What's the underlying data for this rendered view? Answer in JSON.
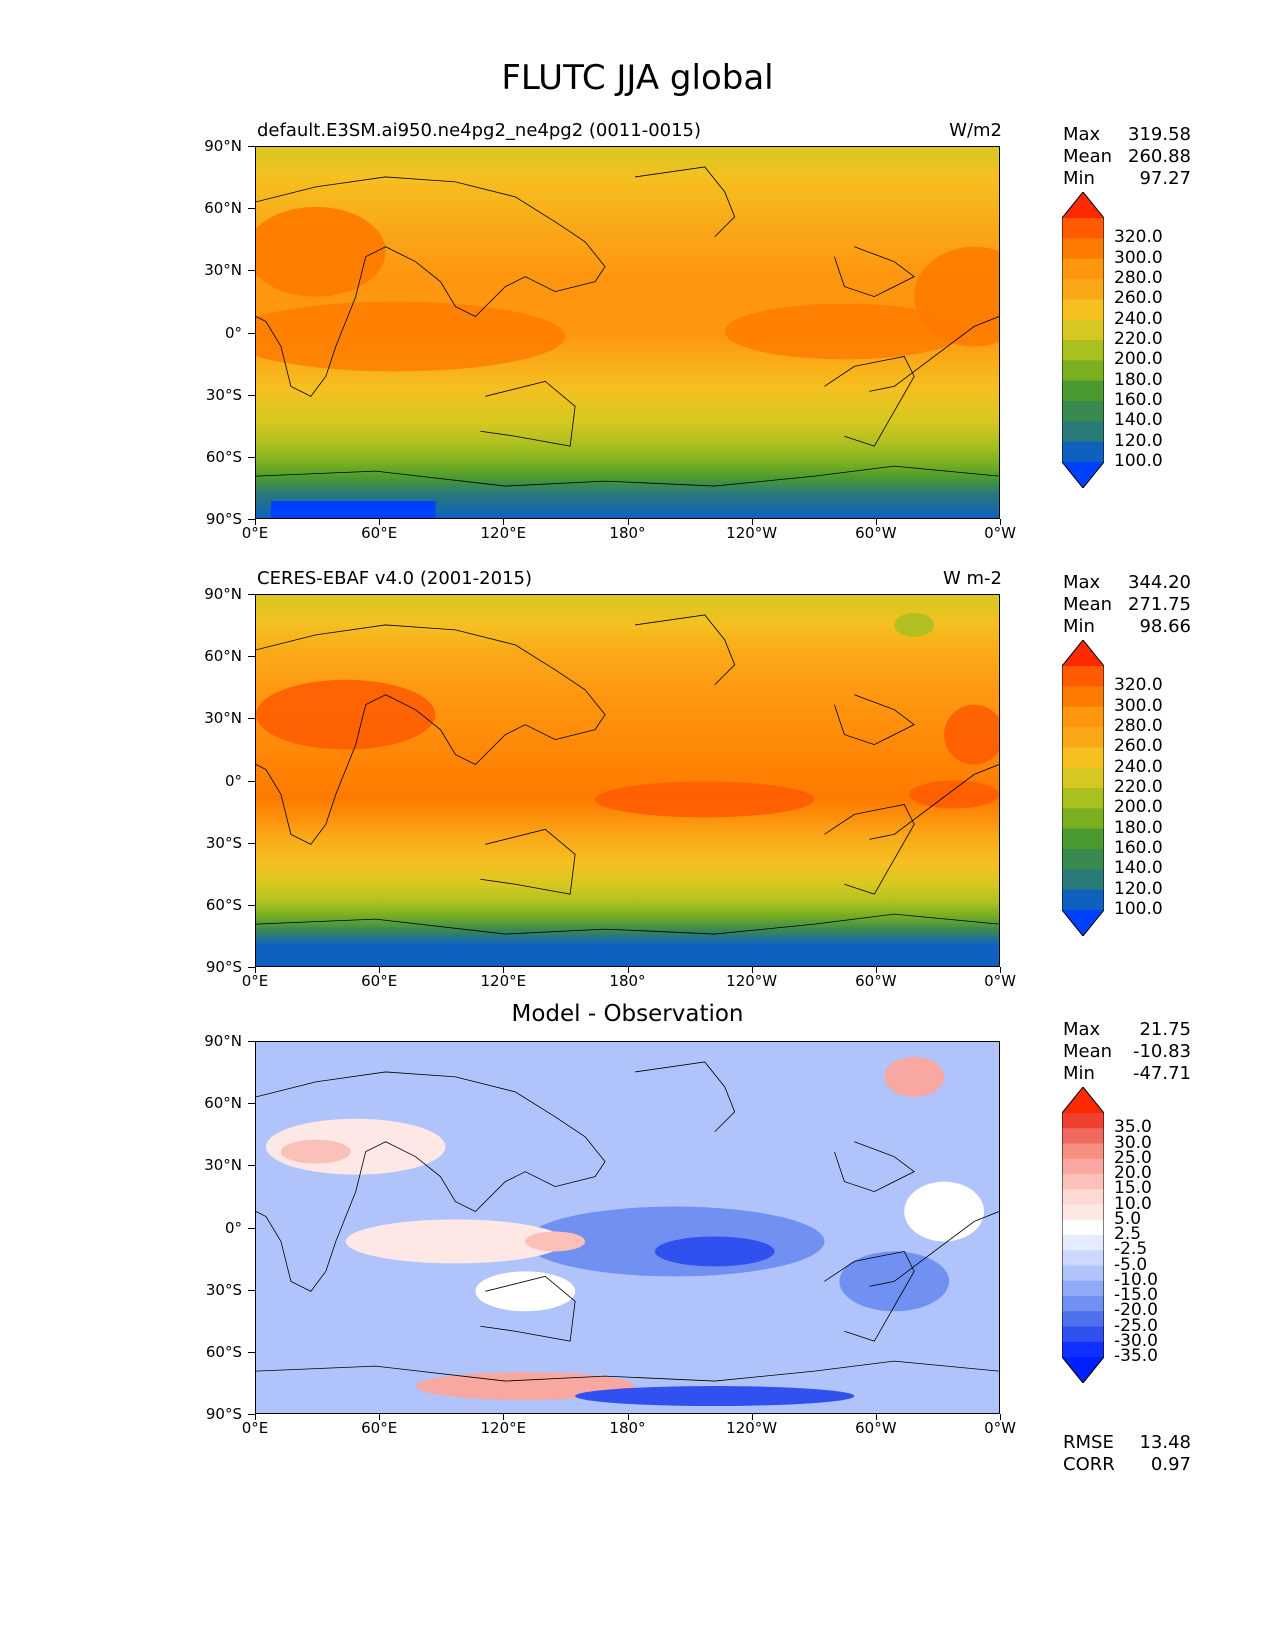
{
  "title": "FLUTC JJA global",
  "lat_labels": [
    "90°N",
    "60°N",
    "30°N",
    "0°",
    "30°S",
    "60°S",
    "90°S"
  ],
  "lon_labels": [
    "0°E",
    "60°E",
    "120°E",
    "180°",
    "120°W",
    "60°W",
    "0°W"
  ],
  "panels": [
    {
      "id": "model",
      "title_left": "default.E3SM.ai950.ne4pg2_ne4pg2 (0011-0015)",
      "units": "W/m2",
      "stats": [
        {
          "label": "Max",
          "value": "319.58"
        },
        {
          "label": "Mean",
          "value": "260.88"
        },
        {
          "label": "Min",
          "value": "97.27"
        }
      ],
      "colorbar_ticks": [
        "320.0",
        "300.0",
        "280.0",
        "260.0",
        "240.0",
        "220.0",
        "200.0",
        "180.0",
        "160.0",
        "140.0",
        "120.0",
        "100.0"
      ],
      "colorbar_colors": [
        "#ff2a00",
        "#ff5a00",
        "#ff7a00",
        "#ff9610",
        "#faa818",
        "#f5c020",
        "#d6c820",
        "#aac020",
        "#7ab020",
        "#4a9a30",
        "#3a8a50",
        "#2a7a78",
        "#1060c0",
        "#0040ff"
      ]
    },
    {
      "id": "observation",
      "title_left": "CERES-EBAF v4.0 (2001-2015)",
      "units": "W m-2",
      "stats": [
        {
          "label": "Max",
          "value": "344.20"
        },
        {
          "label": "Mean",
          "value": "271.75"
        },
        {
          "label": "Min",
          "value": "98.66"
        }
      ],
      "colorbar_ticks": [
        "320.0",
        "300.0",
        "280.0",
        "260.0",
        "240.0",
        "220.0",
        "200.0",
        "180.0",
        "160.0",
        "140.0",
        "120.0",
        "100.0"
      ],
      "colorbar_colors": [
        "#ff2a00",
        "#ff5a00",
        "#ff7a00",
        "#ff9610",
        "#faa818",
        "#f5c020",
        "#d6c820",
        "#aac020",
        "#7ab020",
        "#4a9a30",
        "#3a8a50",
        "#2a7a78",
        "#1060c0",
        "#0040ff"
      ]
    },
    {
      "id": "difference",
      "title_center": "Model - Observation",
      "stats": [
        {
          "label": "Max",
          "value": "21.75"
        },
        {
          "label": "Mean",
          "value": "-10.83"
        },
        {
          "label": "Min",
          "value": "-47.71"
        }
      ],
      "colorbar_ticks": [
        "35.0",
        "30.0",
        "25.0",
        "20.0",
        "15.0",
        "10.0",
        "5.0",
        "2.5",
        "-2.5",
        "-5.0",
        "-10.0",
        "-15.0",
        "-20.0",
        "-25.0",
        "-30.0",
        "-35.0"
      ],
      "colorbar_colors": [
        "#ff2a00",
        "#f04030",
        "#f06a60",
        "#f59080",
        "#f8a8a0",
        "#fbc0b8",
        "#fdd8d4",
        "#fde8e6",
        "#ffffff",
        "#e6ecff",
        "#ccd8ff",
        "#b0c4fb",
        "#90aaf7",
        "#7090f2",
        "#5070ee",
        "#3050f0",
        "#1030ff",
        "#0020ff"
      ],
      "extra_stats": [
        {
          "label": "RMSE",
          "value": "13.48"
        },
        {
          "label": "CORR",
          "value": "0.97"
        }
      ]
    }
  ]
}
